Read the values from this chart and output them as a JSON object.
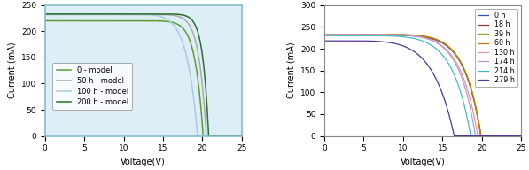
{
  "left_plot": {
    "xlabel": "Voltage(V)",
    "ylabel": "Current (mA)",
    "xlim": [
      0,
      25
    ],
    "ylim": [
      0,
      250
    ],
    "yticks": [
      0,
      50,
      100,
      150,
      200,
      250
    ],
    "xticks": [
      0,
      5,
      10,
      15,
      20,
      25
    ],
    "curves": [
      {
        "label": "0 - model",
        "Isc": 220,
        "Voc": 20.1,
        "color": "#5a9e30",
        "n": 20
      },
      {
        "label": "50 h - model",
        "Isc": 232,
        "Voc": 20.5,
        "color": "#aaaaaa",
        "n": 22
      },
      {
        "label": "100 h - model",
        "Isc": 233,
        "Voc": 19.4,
        "color": "#a8cce4",
        "n": 14
      },
      {
        "label": "200 h - model",
        "Isc": 233,
        "Voc": 20.8,
        "color": "#2d6e30",
        "n": 28
      }
    ],
    "bg_color": "#ddeef6",
    "border_color": "#88bbcc"
  },
  "right_plot": {
    "xlabel": "Voltage(V)",
    "ylabel": "Current (mA)",
    "xlim": [
      0,
      25
    ],
    "ylim": [
      0,
      300
    ],
    "yticks": [
      0,
      50,
      100,
      150,
      200,
      250,
      300
    ],
    "xticks": [
      0,
      5,
      10,
      15,
      20,
      25
    ],
    "curves": [
      {
        "label": "0 h",
        "Isc": 231,
        "Voc": 19.9,
        "color": "#3355bb",
        "n": 8,
        "Rs": 0.3
      },
      {
        "label": "18 h",
        "Isc": 232,
        "Voc": 19.9,
        "color": "#993333",
        "n": 8,
        "Rs": 0.3
      },
      {
        "label": "39 h",
        "Isc": 233,
        "Voc": 19.9,
        "color": "#88aa22",
        "n": 8,
        "Rs": 0.3
      },
      {
        "label": "60 h",
        "Isc": 233,
        "Voc": 19.9,
        "color": "#cc7700",
        "n": 8,
        "Rs": 0.3
      },
      {
        "label": "130 h",
        "Isc": 233,
        "Voc": 19.5,
        "color": "#dd9999",
        "n": 7,
        "Rs": 0.4
      },
      {
        "label": "174 h",
        "Isc": 232,
        "Voc": 19.2,
        "color": "#bb99cc",
        "n": 7,
        "Rs": 0.5
      },
      {
        "label": "214 h",
        "Isc": 230,
        "Voc": 18.6,
        "color": "#44bbcc",
        "n": 6,
        "Rs": 0.6
      },
      {
        "label": "279 h",
        "Isc": 218,
        "Voc": 16.5,
        "color": "#553399",
        "n": 4,
        "Rs": 1.2
      }
    ],
    "bg_color": "#ffffff",
    "border_color": "#888888"
  }
}
